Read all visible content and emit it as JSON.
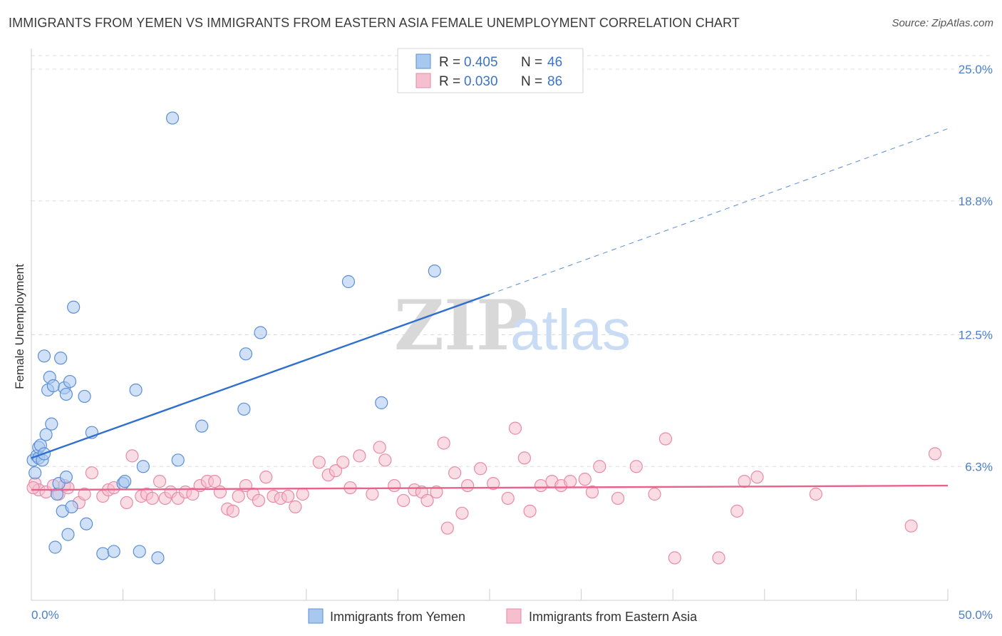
{
  "title": "IMMIGRANTS FROM YEMEN VS IMMIGRANTS FROM EASTERN ASIA FEMALE UNEMPLOYMENT CORRELATION CHART",
  "source": "Source: ZipAtlas.com",
  "watermark": {
    "zip": "ZIP",
    "atlas": "atlas"
  },
  "legend": {
    "rows": [
      {
        "r_label": "R =",
        "r_value": "0.405",
        "n_label": "N =",
        "n_value": "46"
      },
      {
        "r_label": "R =",
        "r_value": "0.030",
        "n_label": "N =",
        "n_value": "86"
      }
    ]
  },
  "colors": {
    "yemen_fill": "#a9c8f0",
    "yemen_stroke": "#5b8fd6",
    "yemen_line": "#2e6fcf",
    "asia_fill": "#f6bfd0",
    "asia_stroke": "#e98aa8",
    "asia_line": "#e8628a",
    "tick_text": "#4a7fd1",
    "grid": "#dddddd"
  },
  "chart_data": {
    "type": "scatter",
    "title": "IMMIGRANTS FROM YEMEN VS IMMIGRANTS FROM EASTERN ASIA FEMALE UNEMPLOYMENT CORRELATION CHART",
    "xlabel": "",
    "ylabel": "Female Unemployment",
    "xlim": [
      0,
      50
    ],
    "ylim": [
      0,
      25.5
    ],
    "x_tick_labels": [
      "0.0%",
      "50.0%"
    ],
    "y_ticks": [
      {
        "value": 25.0,
        "label": "25.0%"
      },
      {
        "value": 18.8,
        "label": "18.8%"
      },
      {
        "value": 12.5,
        "label": "12.5%"
      },
      {
        "value": 6.3,
        "label": "6.3%"
      }
    ],
    "grid": "horizontal dashed",
    "legend_position": "bottom-center",
    "series": [
      {
        "name": "Immigrants from Yemen",
        "points": [
          [
            0.1,
            6.6
          ],
          [
            0.2,
            6.0
          ],
          [
            0.3,
            6.8
          ],
          [
            0.4,
            6.7
          ],
          [
            0.4,
            7.2
          ],
          [
            0.5,
            7.3
          ],
          [
            0.6,
            6.6
          ],
          [
            0.7,
            6.9
          ],
          [
            0.7,
            11.5
          ],
          [
            0.8,
            7.8
          ],
          [
            0.9,
            9.9
          ],
          [
            1.0,
            10.5
          ],
          [
            1.1,
            8.3
          ],
          [
            1.2,
            10.1
          ],
          [
            1.3,
            2.5
          ],
          [
            1.4,
            5.0
          ],
          [
            1.5,
            5.5
          ],
          [
            1.6,
            11.4
          ],
          [
            1.7,
            4.2
          ],
          [
            1.8,
            10.0
          ],
          [
            1.9,
            9.7
          ],
          [
            1.9,
            5.8
          ],
          [
            2.0,
            3.1
          ],
          [
            2.1,
            10.3
          ],
          [
            2.2,
            4.4
          ],
          [
            2.3,
            13.8
          ],
          [
            2.9,
            9.6
          ],
          [
            3.0,
            3.6
          ],
          [
            3.3,
            7.9
          ],
          [
            3.9,
            2.2
          ],
          [
            4.5,
            2.3
          ],
          [
            5.0,
            5.5
          ],
          [
            5.1,
            5.6
          ],
          [
            5.7,
            9.9
          ],
          [
            5.9,
            2.3
          ],
          [
            6.1,
            6.3
          ],
          [
            6.9,
            2.0
          ],
          [
            7.7,
            22.7
          ],
          [
            8.0,
            6.6
          ],
          [
            9.3,
            8.2
          ],
          [
            11.6,
            9.0
          ],
          [
            11.7,
            11.6
          ],
          [
            12.5,
            12.6
          ],
          [
            17.3,
            15.0
          ],
          [
            19.1,
            9.3
          ],
          [
            22.0,
            15.5
          ]
        ],
        "trend": {
          "x": [
            0,
            25
          ],
          "y": [
            6.7,
            14.4
          ]
        },
        "trend_extension": {
          "x": [
            25,
            50
          ],
          "y": [
            14.4,
            22.2
          ]
        }
      },
      {
        "name": "Immigrants from Eastern Asia",
        "points": [
          [
            0.2,
            5.5
          ],
          [
            0.4,
            5.2
          ],
          [
            0.8,
            5.1
          ],
          [
            1.2,
            5.4
          ],
          [
            1.5,
            5.0
          ],
          [
            1.8,
            5.4
          ],
          [
            2.0,
            5.3
          ],
          [
            2.6,
            4.6
          ],
          [
            2.9,
            5.0
          ],
          [
            3.3,
            6.0
          ],
          [
            3.9,
            4.9
          ],
          [
            4.2,
            5.2
          ],
          [
            4.5,
            5.3
          ],
          [
            5.2,
            4.6
          ],
          [
            5.5,
            6.8
          ],
          [
            6.0,
            4.9
          ],
          [
            6.3,
            5.0
          ],
          [
            6.6,
            4.8
          ],
          [
            7.0,
            5.6
          ],
          [
            7.3,
            4.8
          ],
          [
            7.6,
            5.1
          ],
          [
            8.0,
            4.8
          ],
          [
            8.4,
            5.1
          ],
          [
            8.8,
            5.0
          ],
          [
            9.2,
            5.4
          ],
          [
            9.6,
            5.6
          ],
          [
            10.0,
            5.6
          ],
          [
            10.3,
            5.1
          ],
          [
            10.7,
            4.3
          ],
          [
            11.0,
            4.2
          ],
          [
            11.3,
            4.9
          ],
          [
            11.7,
            5.4
          ],
          [
            12.1,
            5.0
          ],
          [
            12.4,
            4.7
          ],
          [
            12.8,
            5.8
          ],
          [
            13.2,
            4.9
          ],
          [
            13.6,
            4.8
          ],
          [
            14.0,
            4.9
          ],
          [
            14.4,
            4.4
          ],
          [
            14.8,
            5.0
          ],
          [
            15.7,
            6.5
          ],
          [
            16.2,
            5.9
          ],
          [
            16.6,
            6.1
          ],
          [
            17.0,
            6.5
          ],
          [
            17.4,
            5.3
          ],
          [
            17.9,
            6.8
          ],
          [
            18.6,
            5.0
          ],
          [
            19.0,
            7.2
          ],
          [
            19.3,
            6.6
          ],
          [
            19.8,
            5.4
          ],
          [
            20.3,
            4.7
          ],
          [
            20.9,
            5.2
          ],
          [
            21.3,
            5.1
          ],
          [
            21.6,
            4.7
          ],
          [
            22.1,
            5.1
          ],
          [
            22.5,
            7.4
          ],
          [
            22.7,
            3.4
          ],
          [
            23.1,
            6.0
          ],
          [
            23.5,
            4.1
          ],
          [
            23.8,
            5.4
          ],
          [
            24.5,
            6.2
          ],
          [
            25.2,
            5.5
          ],
          [
            26.0,
            4.8
          ],
          [
            26.4,
            8.1
          ],
          [
            26.9,
            6.7
          ],
          [
            27.2,
            4.2
          ],
          [
            27.8,
            5.4
          ],
          [
            28.4,
            5.6
          ],
          [
            28.9,
            5.4
          ],
          [
            29.4,
            5.6
          ],
          [
            30.2,
            5.7
          ],
          [
            30.6,
            5.1
          ],
          [
            31.0,
            6.3
          ],
          [
            32.0,
            4.8
          ],
          [
            33.0,
            6.3
          ],
          [
            34.0,
            5.0
          ],
          [
            34.6,
            7.6
          ],
          [
            35.1,
            2.0
          ],
          [
            37.5,
            2.0
          ],
          [
            38.5,
            4.2
          ],
          [
            38.9,
            5.6
          ],
          [
            39.6,
            5.8
          ],
          [
            42.8,
            5.0
          ],
          [
            48.0,
            3.5
          ],
          [
            49.3,
            6.9
          ],
          [
            0.1,
            5.3
          ]
        ],
        "trend": {
          "x": [
            0,
            50
          ],
          "y": [
            5.2,
            5.4
          ]
        }
      }
    ]
  }
}
